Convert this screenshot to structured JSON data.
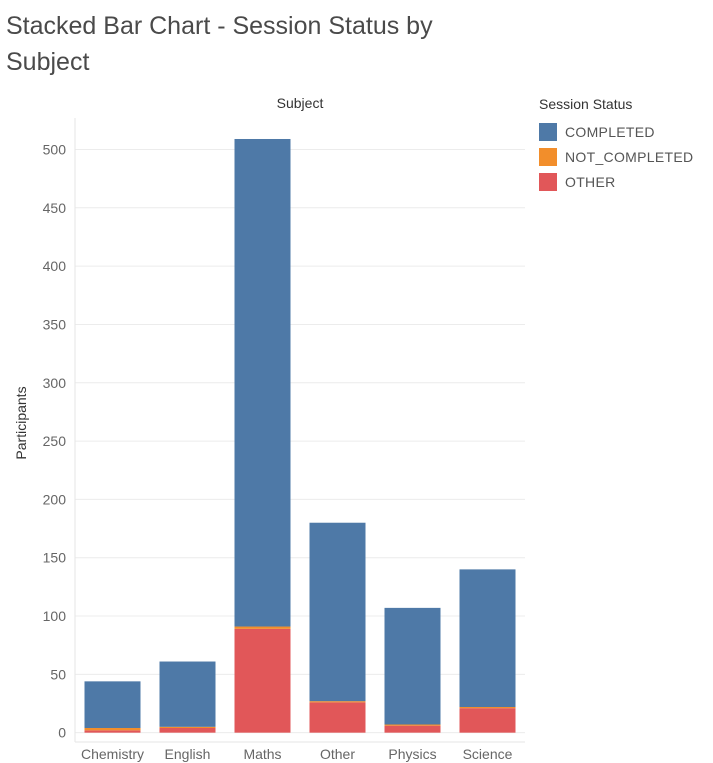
{
  "title": "Stacked Bar Chart - Session Status by Subject",
  "legend": {
    "title": "Session Status",
    "items": [
      {
        "label": "COMPLETED",
        "color": "#4e79a7"
      },
      {
        "label": "NOT_COMPLETED",
        "color": "#f28e2b"
      },
      {
        "label": "OTHER",
        "color": "#e15759"
      }
    ]
  },
  "chart_data": {
    "type": "bar",
    "stacked": true,
    "title": "Stacked Bar Chart - Session Status by Subject",
    "xlabel": "Subject",
    "ylabel": "Participants",
    "categories": [
      "Chemistry",
      "English",
      "Maths",
      "Other",
      "Physics",
      "Science"
    ],
    "series": [
      {
        "name": "OTHER",
        "color": "#e15759",
        "values": [
          2,
          4,
          89,
          26,
          6,
          21
        ]
      },
      {
        "name": "NOT_COMPLETED",
        "color": "#f28e2b",
        "values": [
          2,
          1,
          2,
          1,
          1,
          1
        ]
      },
      {
        "name": "COMPLETED",
        "color": "#4e79a7",
        "values": [
          40,
          56,
          418,
          153,
          100,
          118
        ]
      }
    ],
    "yticks": [
      0,
      50,
      100,
      150,
      200,
      250,
      300,
      350,
      400,
      450,
      500
    ],
    "ylim": [
      -8,
      527
    ],
    "grid": true,
    "legend_position": "right"
  }
}
